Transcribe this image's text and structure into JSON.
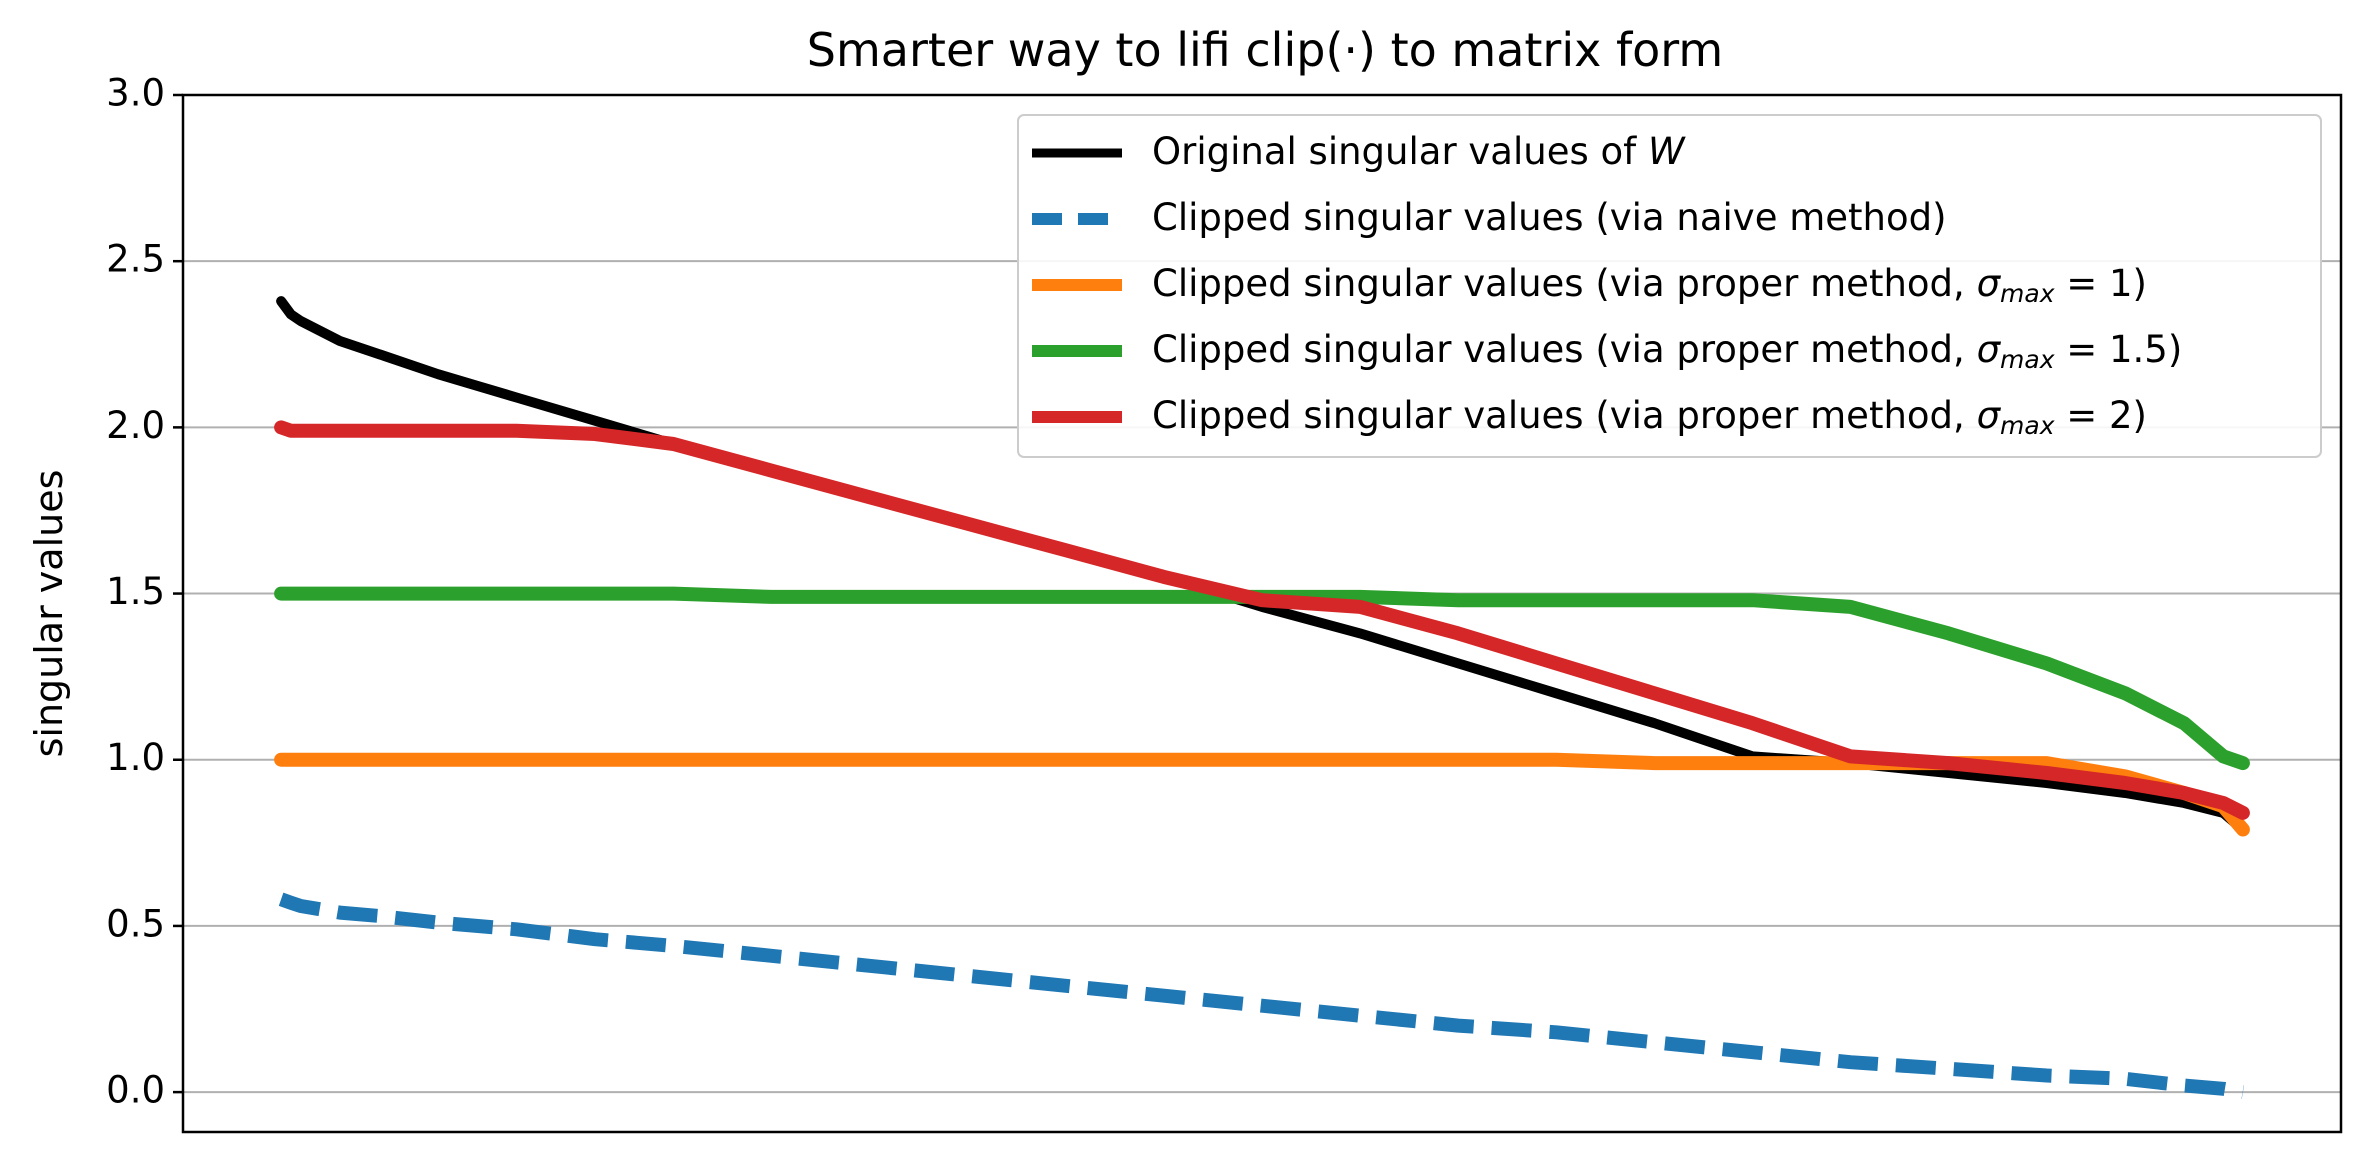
{
  "chart_data": {
    "type": "line",
    "title": "Smarter way to lifi clip(·) to matrix form",
    "xlabel": "",
    "ylabel": "singular values",
    "ylim": [
      -0.12,
      3.0
    ],
    "xlim": [
      -0.05,
      1.05
    ],
    "yticks": [
      0.0,
      0.5,
      1.0,
      1.5,
      2.0,
      2.5,
      3.0
    ],
    "ytick_labels": [
      "0.0",
      "0.5",
      "1.0",
      "1.5",
      "2.0",
      "2.5",
      "3.0"
    ],
    "grid": "horizontal",
    "legend_position": "top-right",
    "x": [
      0.0,
      0.005,
      0.01,
      0.02,
      0.03,
      0.05,
      0.08,
      0.12,
      0.16,
      0.2,
      0.25,
      0.3,
      0.35,
      0.4,
      0.45,
      0.5,
      0.55,
      0.6,
      0.65,
      0.7,
      0.75,
      0.8,
      0.85,
      0.9,
      0.94,
      0.97,
      0.99,
      1.0
    ],
    "series": [
      {
        "name": "Original singular values of W",
        "legend_parts": [
          "Original singular values of ",
          "W",
          "",
          ""
        ],
        "color": "#000000",
        "dash": "solid",
        "values": [
          2.38,
          2.34,
          2.32,
          2.29,
          2.26,
          2.22,
          2.16,
          2.09,
          2.02,
          1.95,
          1.87,
          1.79,
          1.71,
          1.63,
          1.55,
          1.46,
          1.38,
          1.29,
          1.2,
          1.11,
          1.01,
          0.99,
          0.96,
          0.93,
          0.9,
          0.87,
          0.84,
          0.79
        ]
      },
      {
        "name": "Clipped singular values (via naive method)",
        "legend_parts": [
          "Clipped singular values (via naive method)",
          "",
          "",
          ""
        ],
        "color": "#1f77b4",
        "dash": "dashed",
        "values": [
          0.58,
          0.57,
          0.56,
          0.55,
          0.54,
          0.53,
          0.51,
          0.49,
          0.46,
          0.44,
          0.41,
          0.38,
          0.35,
          0.32,
          0.29,
          0.26,
          0.23,
          0.2,
          0.18,
          0.15,
          0.12,
          0.09,
          0.07,
          0.05,
          0.04,
          0.02,
          0.01,
          0.0
        ]
      },
      {
        "name": "Clipped singular values (via proper method, σmax = 1)",
        "legend_parts": [
          "Clipped singular values (via proper method, ",
          "σ",
          "max",
          " = 1)"
        ],
        "color": "#ff7f0e",
        "dash": "solid",
        "values": [
          1.0,
          1.0,
          1.0,
          1.0,
          1.0,
          1.0,
          1.0,
          1.0,
          1.0,
          1.0,
          1.0,
          1.0,
          1.0,
          1.0,
          1.0,
          1.0,
          1.0,
          1.0,
          1.0,
          0.99,
          0.99,
          0.99,
          0.99,
          0.99,
          0.95,
          0.9,
          0.86,
          0.79
        ]
      },
      {
        "name": "Clipped singular values (via proper method, σmax = 1.5)",
        "legend_parts": [
          "Clipped singular values (via proper method, ",
          "σ",
          "max",
          " = 1.5)"
        ],
        "color": "#2ca02c",
        "dash": "solid",
        "values": [
          1.5,
          1.5,
          1.5,
          1.5,
          1.5,
          1.5,
          1.5,
          1.5,
          1.5,
          1.5,
          1.49,
          1.49,
          1.49,
          1.49,
          1.49,
          1.49,
          1.49,
          1.48,
          1.48,
          1.48,
          1.48,
          1.46,
          1.38,
          1.29,
          1.2,
          1.11,
          1.01,
          0.99
        ]
      },
      {
        "name": "Clipped singular values (via proper method, σmax = 2)",
        "legend_parts": [
          "Clipped singular values (via proper method, ",
          "σ",
          "max",
          " = 2)"
        ],
        "color": "#d62728",
        "dash": "solid",
        "values": [
          2.0,
          1.99,
          1.99,
          1.99,
          1.99,
          1.99,
          1.99,
          1.99,
          1.98,
          1.95,
          1.87,
          1.79,
          1.71,
          1.63,
          1.55,
          1.48,
          1.46,
          1.38,
          1.29,
          1.2,
          1.11,
          1.01,
          0.99,
          0.96,
          0.93,
          0.9,
          0.87,
          0.84
        ]
      }
    ]
  }
}
